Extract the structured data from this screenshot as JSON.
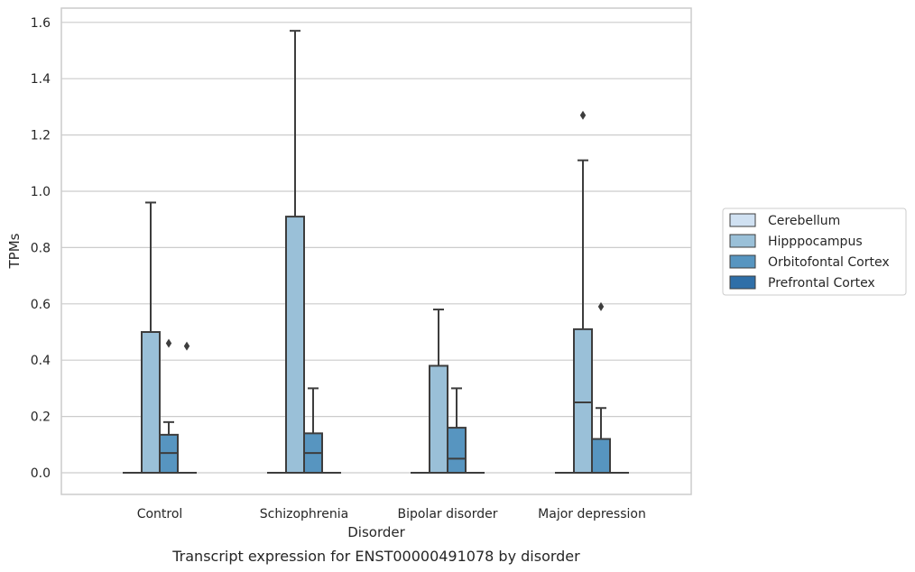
{
  "caption": "Transcript expression for ENST00000491078 by disorder",
  "chart_data": {
    "type": "box",
    "title": "",
    "xlabel": "Disorder",
    "ylabel": "TPMs",
    "ylim": [
      -0.075,
      1.65
    ],
    "yticks": [
      0.0,
      0.2,
      0.4,
      0.6,
      0.8,
      1.0,
      1.2,
      1.4,
      1.6
    ],
    "ytick_labels": [
      "0.0",
      "0.2",
      "0.4",
      "0.6",
      "0.8",
      "1.0",
      "1.2",
      "1.4",
      "1.6"
    ],
    "grid": "horizontal",
    "legend_position": "right",
    "categories": [
      "Control",
      "Schizophrenia",
      "Bipolar disorder",
      "Major depression"
    ],
    "series": [
      {
        "name": "Cerebellum",
        "color": "#d0e1f2",
        "boxes": [
          {
            "q1": 0,
            "median": 0,
            "q3": 0,
            "whisker_low": 0,
            "whisker_high": 0,
            "outliers": []
          },
          {
            "q1": 0,
            "median": 0,
            "q3": 0,
            "whisker_low": 0,
            "whisker_high": 0,
            "outliers": []
          },
          {
            "q1": 0,
            "median": 0,
            "q3": 0,
            "whisker_low": 0,
            "whisker_high": 0,
            "outliers": []
          },
          {
            "q1": 0,
            "median": 0,
            "q3": 0,
            "whisker_low": 0,
            "whisker_high": 0,
            "outliers": []
          }
        ]
      },
      {
        "name": "Hipppocampus",
        "color": "#9ac0d8",
        "boxes": [
          {
            "q1": 0,
            "median": 0,
            "q3": 0.5,
            "whisker_low": 0,
            "whisker_high": 0.96,
            "outliers": []
          },
          {
            "q1": 0,
            "median": 0,
            "q3": 0.91,
            "whisker_low": 0,
            "whisker_high": 1.57,
            "outliers": []
          },
          {
            "q1": 0,
            "median": 0,
            "q3": 0.38,
            "whisker_low": 0,
            "whisker_high": 0.58,
            "outliers": []
          },
          {
            "q1": 0,
            "median": 0.25,
            "q3": 0.51,
            "whisker_low": 0,
            "whisker_high": 1.11,
            "outliers": [
              1.27
            ]
          }
        ]
      },
      {
        "name": "Orbitofontal Cortex",
        "color": "#5795c0",
        "boxes": [
          {
            "q1": 0,
            "median": 0.07,
            "q3": 0.135,
            "whisker_low": 0,
            "whisker_high": 0.18,
            "outliers": [
              0.46
            ]
          },
          {
            "q1": 0,
            "median": 0.07,
            "q3": 0.14,
            "whisker_low": 0,
            "whisker_high": 0.3,
            "outliers": []
          },
          {
            "q1": 0,
            "median": 0.05,
            "q3": 0.16,
            "whisker_low": 0,
            "whisker_high": 0.3,
            "outliers": []
          },
          {
            "q1": 0,
            "median": 0,
            "q3": 0.12,
            "whisker_low": 0,
            "whisker_high": 0.23,
            "outliers": [
              0.59
            ]
          }
        ]
      },
      {
        "name": "Prefrontal Cortex",
        "color": "#2f6fa8",
        "boxes": [
          {
            "q1": 0,
            "median": 0,
            "q3": 0,
            "whisker_low": 0,
            "whisker_high": 0,
            "outliers": [
              0.45
            ]
          },
          {
            "q1": 0,
            "median": 0,
            "q3": 0,
            "whisker_low": 0,
            "whisker_high": 0,
            "outliers": []
          },
          {
            "q1": 0,
            "median": 0,
            "q3": 0,
            "whisker_low": 0,
            "whisker_high": 0,
            "outliers": []
          },
          {
            "q1": 0,
            "median": 0,
            "q3": 0,
            "whisker_low": 0,
            "whisker_high": 0,
            "outliers": []
          }
        ]
      }
    ]
  }
}
